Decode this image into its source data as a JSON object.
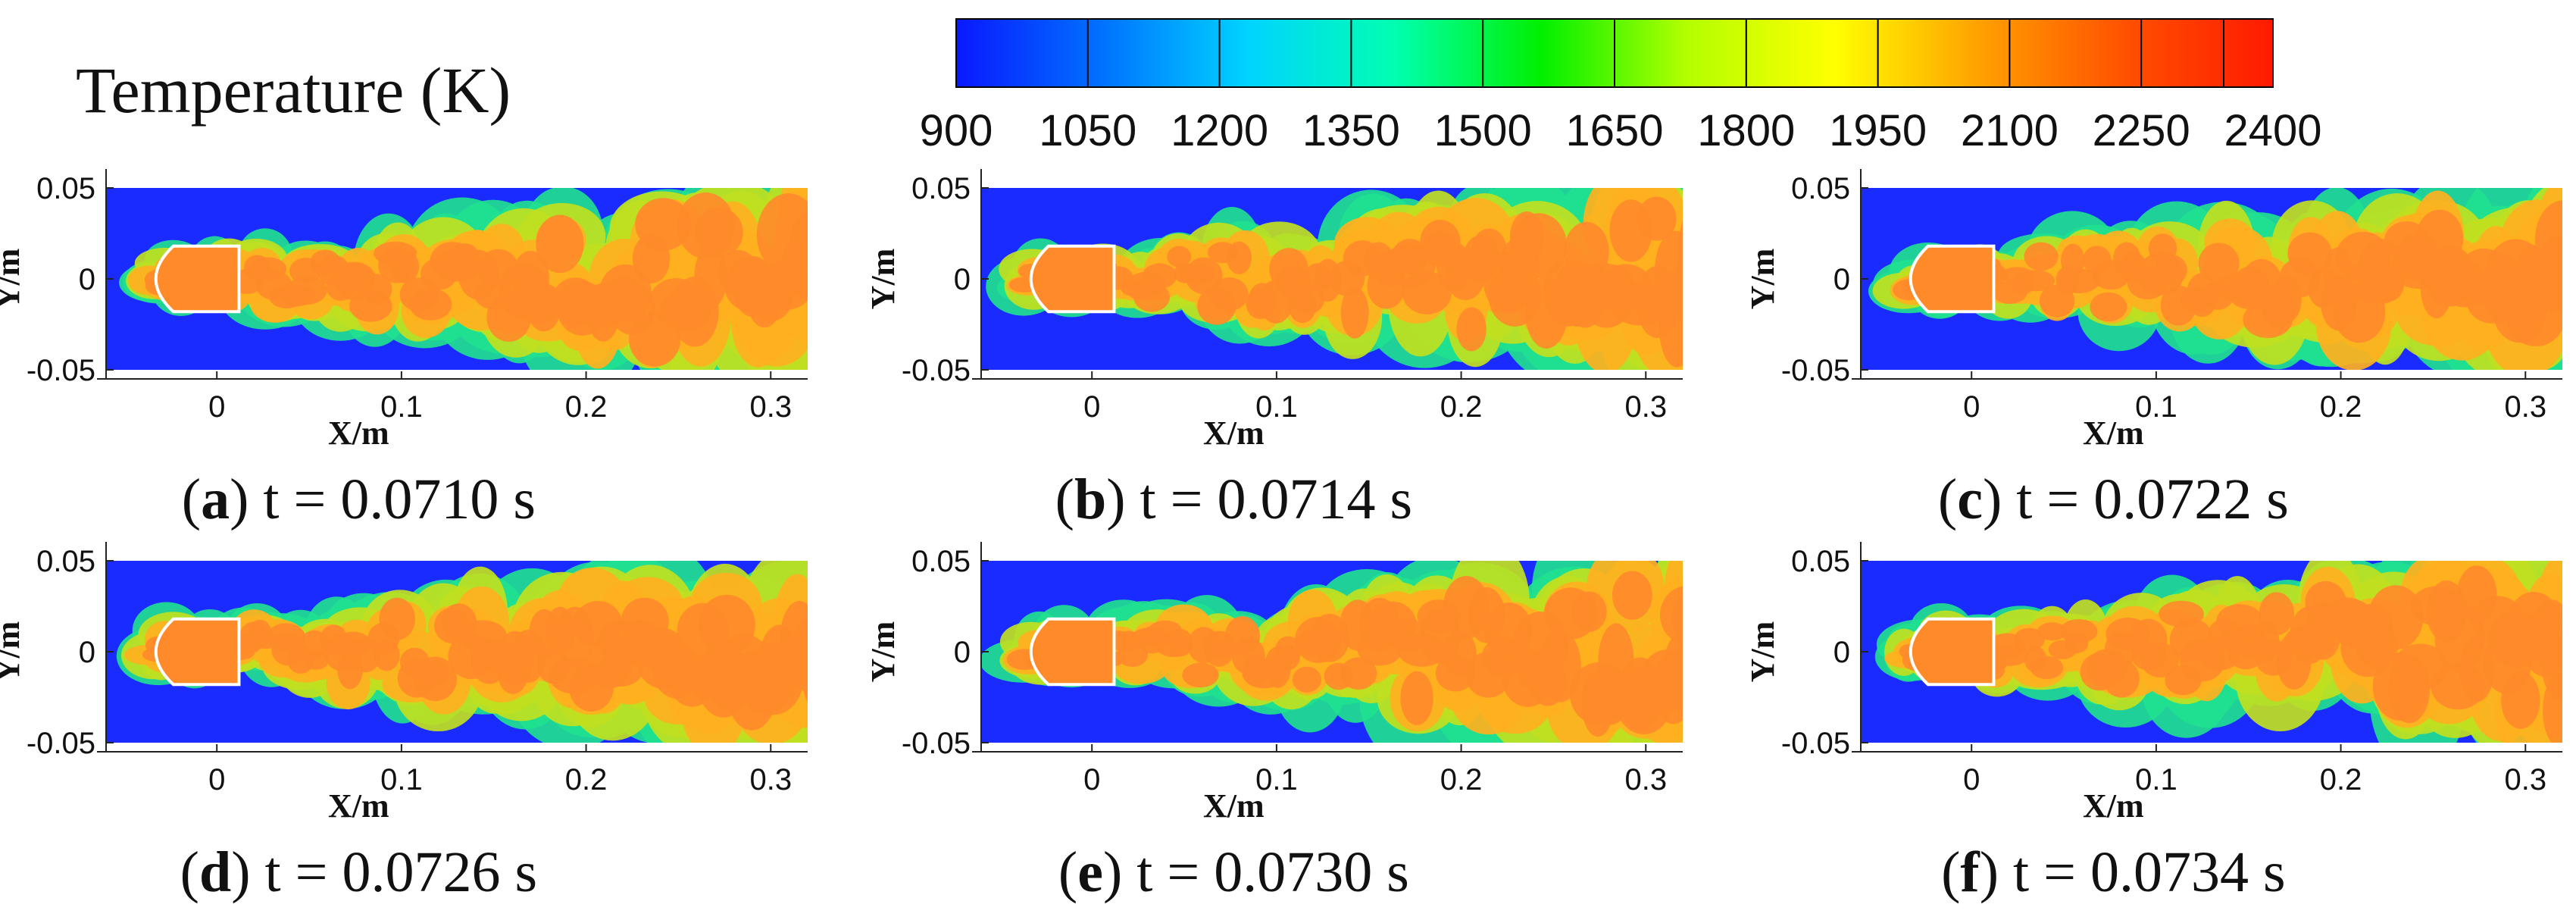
{
  "legend": {
    "title": "Temperature (K)",
    "ticks": [
      "900",
      "1050",
      "1200",
      "1350",
      "1500",
      "1650",
      "1800",
      "1950",
      "2100",
      "2250",
      "2400"
    ],
    "colors": [
      "#0a18ff",
      "#0072ff",
      "#00d4ff",
      "#00ffb0",
      "#00f000",
      "#b4ff00",
      "#ffff00",
      "#ffa000",
      "#ff5000",
      "#ff1a00"
    ]
  },
  "axes": {
    "xlabel": "X/m",
    "ylabel": "Y/m",
    "xticks": [
      "0",
      "0.1",
      "0.2",
      "0.3"
    ],
    "yticks": [
      "0.05",
      "0",
      "-0.05"
    ],
    "xlim": [
      -0.06,
      0.32
    ],
    "ylim": [
      -0.05,
      0.05
    ]
  },
  "colors": {
    "background": "#1a2bff",
    "flame_core": "#ff8a2a",
    "flame_mid": "#ffb020",
    "flame_edge": "#c0e020",
    "flame_rim": "#20e090",
    "nozzle_outline": "#ffffff"
  },
  "panels": [
    {
      "letter": "a",
      "caption": "t = 0.0710 s"
    },
    {
      "letter": "b",
      "caption": "t = 0.0714 s"
    },
    {
      "letter": "c",
      "caption": "t = 0.0722 s"
    },
    {
      "letter": "d",
      "caption": "t = 0.0726 s"
    },
    {
      "letter": "e",
      "caption": "t = 0.0730 s"
    },
    {
      "letter": "f",
      "caption": "t = 0.0734 s"
    }
  ]
}
